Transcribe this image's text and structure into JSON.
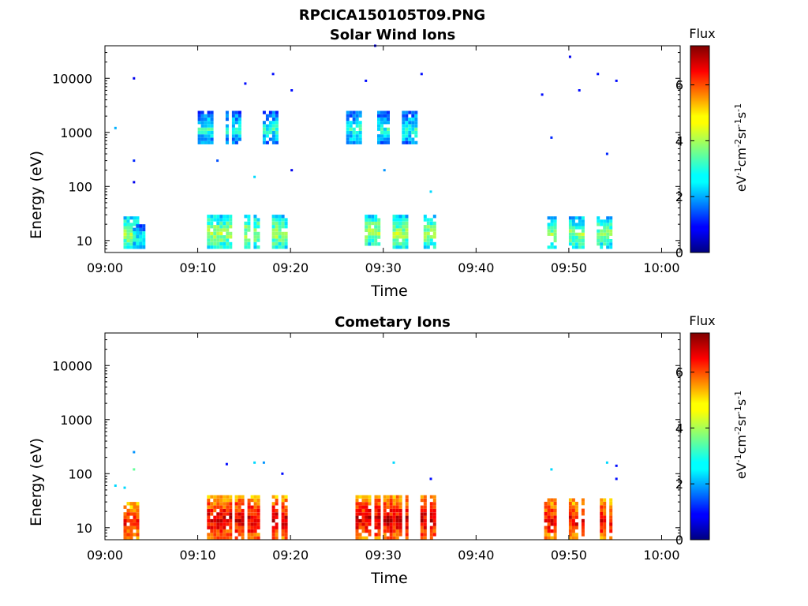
{
  "figure": {
    "title": "RPCICA150105T09.PNG"
  },
  "colorbar": {
    "title": "Flux",
    "unit_parts": [
      "eV",
      "-1",
      "cm",
      "-2",
      "sr",
      "-1",
      "s",
      "-1"
    ],
    "range": [
      0,
      7.4
    ],
    "ticks": [
      0,
      2,
      4,
      6
    ],
    "tick_labels": [
      "0",
      "2",
      "4",
      "6"
    ],
    "colormap": "jet"
  },
  "chart_data": [
    {
      "type": "heatmap",
      "title": "Solar Wind Ions",
      "xlabel": "Time",
      "ylabel": "Energy (eV)",
      "yscale": "log",
      "xlim": [
        "09:00",
        "10:02"
      ],
      "ylim": [
        6,
        40000
      ],
      "x_ticks": [
        "09:00",
        "09:10",
        "09:20",
        "09:30",
        "09:40",
        "09:50",
        "10:00"
      ],
      "y_ticks": [
        10,
        100,
        1000,
        10000
      ],
      "y_tick_labels": [
        "10",
        "100",
        "1000",
        "10000"
      ],
      "grid": false,
      "bursts": [
        {
          "t_start": "09:02",
          "t_end": "09:03",
          "e_low": 7,
          "e_high": 28,
          "flux": 4.0
        },
        {
          "t_start": "09:03",
          "t_end": "09:04",
          "e_low": 7,
          "e_high": 20,
          "flux": 3.0
        },
        {
          "t_start": "09:11",
          "t_end": "09:13",
          "e_low": 7,
          "e_high": 30,
          "flux": 4.0
        },
        {
          "t_start": "09:15",
          "t_end": "09:16",
          "e_low": 7,
          "e_high": 30,
          "flux": 4.0
        },
        {
          "t_start": "09:18",
          "t_end": "09:19",
          "e_low": 7,
          "e_high": 30,
          "flux": 4.0
        },
        {
          "t_start": "09:28",
          "t_end": "09:29",
          "e_low": 8,
          "e_high": 30,
          "flux": 4.0
        },
        {
          "t_start": "09:31",
          "t_end": "09:32",
          "e_low": 7,
          "e_high": 30,
          "flux": 4.0
        },
        {
          "t_start": "09:34",
          "t_end": "09:35",
          "e_low": 7,
          "e_high": 30,
          "flux": 4.0
        },
        {
          "t_start": "09:47",
          "t_end": "09:48",
          "e_low": 7,
          "e_high": 28,
          "flux": 3.8
        },
        {
          "t_start": "09:50",
          "t_end": "09:51",
          "e_low": 7,
          "e_high": 28,
          "flux": 3.8
        },
        {
          "t_start": "09:53",
          "t_end": "09:54",
          "e_low": 7,
          "e_high": 28,
          "flux": 3.8
        },
        {
          "t_start": "09:10",
          "t_end": "09:11",
          "e_low": 600,
          "e_high": 2500,
          "flux": 3.0
        },
        {
          "t_start": "09:13",
          "t_end": "09:14",
          "e_low": 600,
          "e_high": 2500,
          "flux": 3.0
        },
        {
          "t_start": "09:17",
          "t_end": "09:18",
          "e_low": 600,
          "e_high": 2500,
          "flux": 3.0
        },
        {
          "t_start": "09:26",
          "t_end": "09:27",
          "e_low": 600,
          "e_high": 2500,
          "flux": 3.0
        },
        {
          "t_start": "09:29",
          "t_end": "09:30",
          "e_low": 600,
          "e_high": 2500,
          "flux": 3.0
        },
        {
          "t_start": "09:32",
          "t_end": "09:33",
          "e_low": 600,
          "e_high": 2500,
          "flux": 3.0
        }
      ],
      "scatter": [
        {
          "t": "09:01",
          "e": 1200,
          "flux": 2.2
        },
        {
          "t": "09:03",
          "e": 10000,
          "flux": 0.8
        },
        {
          "t": "09:03",
          "e": 300,
          "flux": 1.2
        },
        {
          "t": "09:03",
          "e": 120,
          "flux": 0.8
        },
        {
          "t": "09:12",
          "e": 300,
          "flux": 1.5
        },
        {
          "t": "09:15",
          "e": 8000,
          "flux": 1.0
        },
        {
          "t": "09:16",
          "e": 150,
          "flux": 2.5
        },
        {
          "t": "09:18",
          "e": 12000,
          "flux": 1.0
        },
        {
          "t": "09:20",
          "e": 6000,
          "flux": 1.0
        },
        {
          "t": "09:20",
          "e": 200,
          "flux": 0.8
        },
        {
          "t": "09:28",
          "e": 9000,
          "flux": 1.0
        },
        {
          "t": "09:29",
          "e": 40000,
          "flux": 0.8
        },
        {
          "t": "09:30",
          "e": 200,
          "flux": 2.0
        },
        {
          "t": "09:34",
          "e": 12000,
          "flux": 1.0
        },
        {
          "t": "09:35",
          "e": 80,
          "flux": 2.5
        },
        {
          "t": "09:47",
          "e": 5000,
          "flux": 1.0
        },
        {
          "t": "09:50",
          "e": 25000,
          "flux": 0.8
        },
        {
          "t": "09:51",
          "e": 6000,
          "flux": 1.0
        },
        {
          "t": "09:53",
          "e": 12000,
          "flux": 1.0
        },
        {
          "t": "09:55",
          "e": 9000,
          "flux": 1.0
        },
        {
          "t": "09:48",
          "e": 800,
          "flux": 1.2
        },
        {
          "t": "09:54",
          "e": 400,
          "flux": 1.2
        }
      ]
    },
    {
      "type": "heatmap",
      "title": "Cometary Ions",
      "xlabel": "Time",
      "ylabel": "Energy (eV)",
      "yscale": "log",
      "xlim": [
        "09:00",
        "10:02"
      ],
      "ylim": [
        6,
        40000
      ],
      "x_ticks": [
        "09:00",
        "09:10",
        "09:20",
        "09:30",
        "09:40",
        "09:50",
        "10:00"
      ],
      "y_ticks": [
        10,
        100,
        1000,
        10000
      ],
      "y_tick_labels": [
        "10",
        "100",
        "1000",
        "10000"
      ],
      "grid": false,
      "bursts": [
        {
          "t_start": "09:02",
          "t_end": "09:03",
          "e_low": 6,
          "e_high": 30,
          "flux": 6.5
        },
        {
          "t_start": "09:11",
          "t_end": "09:13",
          "e_low": 6,
          "e_high": 40,
          "flux": 6.8
        },
        {
          "t_start": "09:14",
          "t_end": "09:16",
          "e_low": 6,
          "e_high": 40,
          "flux": 6.8
        },
        {
          "t_start": "09:18",
          "t_end": "09:19",
          "e_low": 6,
          "e_high": 40,
          "flux": 6.8
        },
        {
          "t_start": "09:27",
          "t_end": "09:29",
          "e_low": 6,
          "e_high": 40,
          "flux": 6.8
        },
        {
          "t_start": "09:30",
          "t_end": "09:32",
          "e_low": 6,
          "e_high": 40,
          "flux": 6.8
        },
        {
          "t_start": "09:34",
          "t_end": "09:35",
          "e_low": 6,
          "e_high": 40,
          "flux": 6.8
        },
        {
          "t_start": "09:47",
          "t_end": "09:48",
          "e_low": 6,
          "e_high": 35,
          "flux": 6.6
        },
        {
          "t_start": "09:50",
          "t_end": "09:51",
          "e_low": 6,
          "e_high": 35,
          "flux": 6.6
        },
        {
          "t_start": "09:53",
          "t_end": "09:54",
          "e_low": 6,
          "e_high": 35,
          "flux": 6.6
        }
      ],
      "scatter": [
        {
          "t": "09:01",
          "e": 60,
          "flux": 2.5
        },
        {
          "t": "09:02",
          "e": 55,
          "flux": 2.5
        },
        {
          "t": "09:03",
          "e": 250,
          "flux": 2.0
        },
        {
          "t": "09:03",
          "e": 120,
          "flux": 3.5
        },
        {
          "t": "09:13",
          "e": 150,
          "flux": 1.0
        },
        {
          "t": "09:16",
          "e": 160,
          "flux": 2.5
        },
        {
          "t": "09:17",
          "e": 160,
          "flux": 2.0
        },
        {
          "t": "09:19",
          "e": 100,
          "flux": 1.0
        },
        {
          "t": "09:31",
          "e": 160,
          "flux": 2.5
        },
        {
          "t": "09:35",
          "e": 80,
          "flux": 1.0
        },
        {
          "t": "09:48",
          "e": 120,
          "flux": 2.5
        },
        {
          "t": "09:55",
          "e": 140,
          "flux": 1.0
        },
        {
          "t": "09:55",
          "e": 80,
          "flux": 1.0
        },
        {
          "t": "09:54",
          "e": 160,
          "flux": 2.5
        }
      ]
    }
  ]
}
